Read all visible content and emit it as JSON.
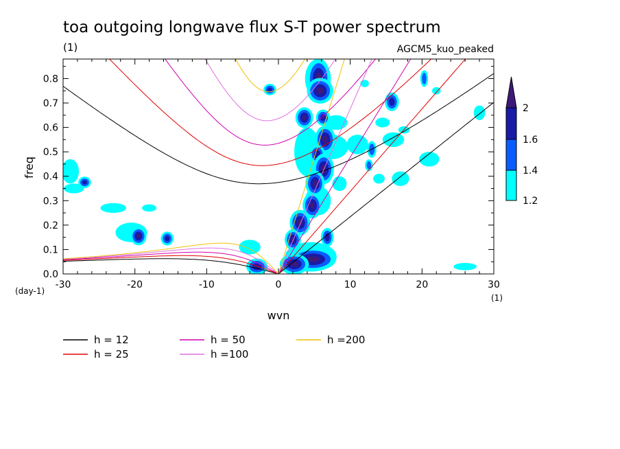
{
  "chart_data": {
    "type": "heatmap",
    "title": "toa outgoing longwave flux S-T power spectrum",
    "subtitle_left": "(1)",
    "subtitle_right": "AGCM5_kuo_peaked",
    "xlabel": "wvn",
    "ylabel": "freq",
    "x_unit_label": "(1)",
    "y_unit_label": "(day-1)",
    "xlim": [
      -30,
      30
    ],
    "ylim": [
      0,
      0.88
    ],
    "x_ticks": [
      -30,
      -20,
      -10,
      0,
      10,
      20,
      30
    ],
    "x_tick_labels": [
      "-30",
      "-20",
      "-10",
      "0",
      "10",
      "20",
      "30"
    ],
    "y_ticks": [
      0.0,
      0.1,
      0.2,
      0.3,
      0.4,
      0.5,
      0.6,
      0.7,
      0.8
    ],
    "y_tick_labels": [
      "0.0",
      "0.1",
      "0.2",
      "0.3",
      "0.4",
      "0.5",
      "0.6",
      "0.7",
      "0.8"
    ],
    "colorbar": {
      "levels": [
        1.2,
        1.4,
        1.6,
        2
      ],
      "labels": [
        "1.2",
        "1.4",
        "1.6",
        "2"
      ],
      "colors": [
        "#00ffff",
        "#0a5cff",
        "#1a1aa8",
        "#3d1a7a"
      ]
    },
    "dispersion_curves": [
      {
        "label": "h = 12",
        "h": 12,
        "color": "#000000"
      },
      {
        "label": "h = 25",
        "h": 25,
        "color": "#e00000"
      },
      {
        "label": "h = 50",
        "h": 50,
        "color": "#d000b0"
      },
      {
        "label": "h =100",
        "h": 100,
        "color": "#e070e0"
      },
      {
        "label": "h =200",
        "h": 200,
        "color": "#f0c000"
      }
    ],
    "power_blobs": [
      {
        "k": 5.6,
        "f": 0.8,
        "rk": 1.2,
        "rf": 0.07,
        "level": 3
      },
      {
        "k": 5.8,
        "f": 0.75,
        "rk": 1.4,
        "rf": 0.04,
        "level": 3
      },
      {
        "k": 3.6,
        "f": 0.64,
        "rk": 0.8,
        "rf": 0.03,
        "level": 3
      },
      {
        "k": 6.2,
        "f": 0.64,
        "rk": 0.7,
        "rf": 0.025,
        "level": 2
      },
      {
        "k": 6.5,
        "f": 0.55,
        "rk": 1.0,
        "rf": 0.045,
        "level": 3
      },
      {
        "k": 5.4,
        "f": 0.49,
        "rk": 0.8,
        "rf": 0.03,
        "level": 2
      },
      {
        "k": 6.3,
        "f": 0.43,
        "rk": 1.0,
        "rf": 0.05,
        "level": 3
      },
      {
        "k": 5.1,
        "f": 0.37,
        "rk": 0.9,
        "rf": 0.04,
        "level": 3
      },
      {
        "k": 4.7,
        "f": 0.28,
        "rk": 0.9,
        "rf": 0.04,
        "level": 3
      },
      {
        "k": 3.0,
        "f": 0.21,
        "rk": 1.0,
        "rf": 0.04,
        "level": 3
      },
      {
        "k": 2.0,
        "f": 0.14,
        "rk": 0.7,
        "rf": 0.03,
        "level": 3
      },
      {
        "k": 6.8,
        "f": 0.15,
        "rk": 0.6,
        "rf": 0.03,
        "level": 2
      },
      {
        "k": 4.8,
        "f": 0.06,
        "rk": 2.8,
        "rf": 0.035,
        "level": 3
      },
      {
        "k": 2.2,
        "f": 0.04,
        "rk": 1.6,
        "rf": 0.03,
        "level": 3
      },
      {
        "k": -3.0,
        "f": 0.03,
        "rk": 1.2,
        "rf": 0.025,
        "level": 2
      },
      {
        "k": -19.5,
        "f": 0.155,
        "rk": 0.7,
        "rf": 0.025,
        "level": 3
      },
      {
        "k": -15.5,
        "f": 0.145,
        "rk": 0.6,
        "rf": 0.02,
        "level": 2
      },
      {
        "k": -27.0,
        "f": 0.375,
        "rk": 0.6,
        "rf": 0.015,
        "level": 2
      },
      {
        "k": -1.2,
        "f": 0.755,
        "rk": 0.6,
        "rf": 0.015,
        "level": 2
      },
      {
        "k": 15.8,
        "f": 0.705,
        "rk": 0.7,
        "rf": 0.03,
        "level": 2
      },
      {
        "k": 13.0,
        "f": 0.51,
        "rk": 0.5,
        "rf": 0.03,
        "level": 1
      },
      {
        "k": 12.6,
        "f": 0.445,
        "rk": 0.4,
        "rf": 0.02,
        "level": 1
      },
      {
        "k": 20.3,
        "f": 0.8,
        "rk": 0.4,
        "rf": 0.03,
        "level": 1
      }
    ],
    "cyan_patches": [
      {
        "k": 4.0,
        "f": 0.5,
        "rk": 1.8,
        "rf": 0.1
      },
      {
        "k": 5.5,
        "f": 0.8,
        "rk": 1.8,
        "rf": 0.08
      },
      {
        "k": 7.5,
        "f": 0.52,
        "rk": 2.2,
        "rf": 0.05
      },
      {
        "k": 8.0,
        "f": 0.62,
        "rk": 1.6,
        "rf": 0.03
      },
      {
        "k": 4.5,
        "f": 0.07,
        "rk": 3.6,
        "rf": 0.06
      },
      {
        "k": 5.5,
        "f": 0.3,
        "rk": 1.8,
        "rf": 0.06
      },
      {
        "k": -29.0,
        "f": 0.42,
        "rk": 1.2,
        "rf": 0.05
      },
      {
        "k": -28.5,
        "f": 0.35,
        "rk": 1.4,
        "rf": 0.02
      },
      {
        "k": -23.0,
        "f": 0.27,
        "rk": 1.8,
        "rf": 0.02
      },
      {
        "k": -18.0,
        "f": 0.27,
        "rk": 1.0,
        "rf": 0.015
      },
      {
        "k": -20.5,
        "f": 0.17,
        "rk": 2.2,
        "rf": 0.04
      },
      {
        "k": -4.0,
        "f": 0.11,
        "rk": 1.5,
        "rf": 0.03
      },
      {
        "k": 11.0,
        "f": 0.53,
        "rk": 1.5,
        "rf": 0.04
      },
      {
        "k": 16.0,
        "f": 0.55,
        "rk": 1.5,
        "rf": 0.03
      },
      {
        "k": 14.5,
        "f": 0.62,
        "rk": 1.0,
        "rf": 0.02
      },
      {
        "k": 12.0,
        "f": 0.78,
        "rk": 0.6,
        "rf": 0.015
      },
      {
        "k": 22.0,
        "f": 0.75,
        "rk": 0.6,
        "rf": 0.015
      },
      {
        "k": 28.0,
        "f": 0.66,
        "rk": 0.8,
        "rf": 0.03
      },
      {
        "k": 17.0,
        "f": 0.39,
        "rk": 1.2,
        "rf": 0.03
      },
      {
        "k": 14.0,
        "f": 0.39,
        "rk": 0.8,
        "rf": 0.02
      },
      {
        "k": 26.0,
        "f": 0.03,
        "rk": 1.6,
        "rf": 0.015
      },
      {
        "k": 21.0,
        "f": 0.47,
        "rk": 1.4,
        "rf": 0.03
      },
      {
        "k": 17.5,
        "f": 0.59,
        "rk": 0.8,
        "rf": 0.015
      },
      {
        "k": 8.5,
        "f": 0.37,
        "rk": 1.0,
        "rf": 0.03
      }
    ]
  }
}
